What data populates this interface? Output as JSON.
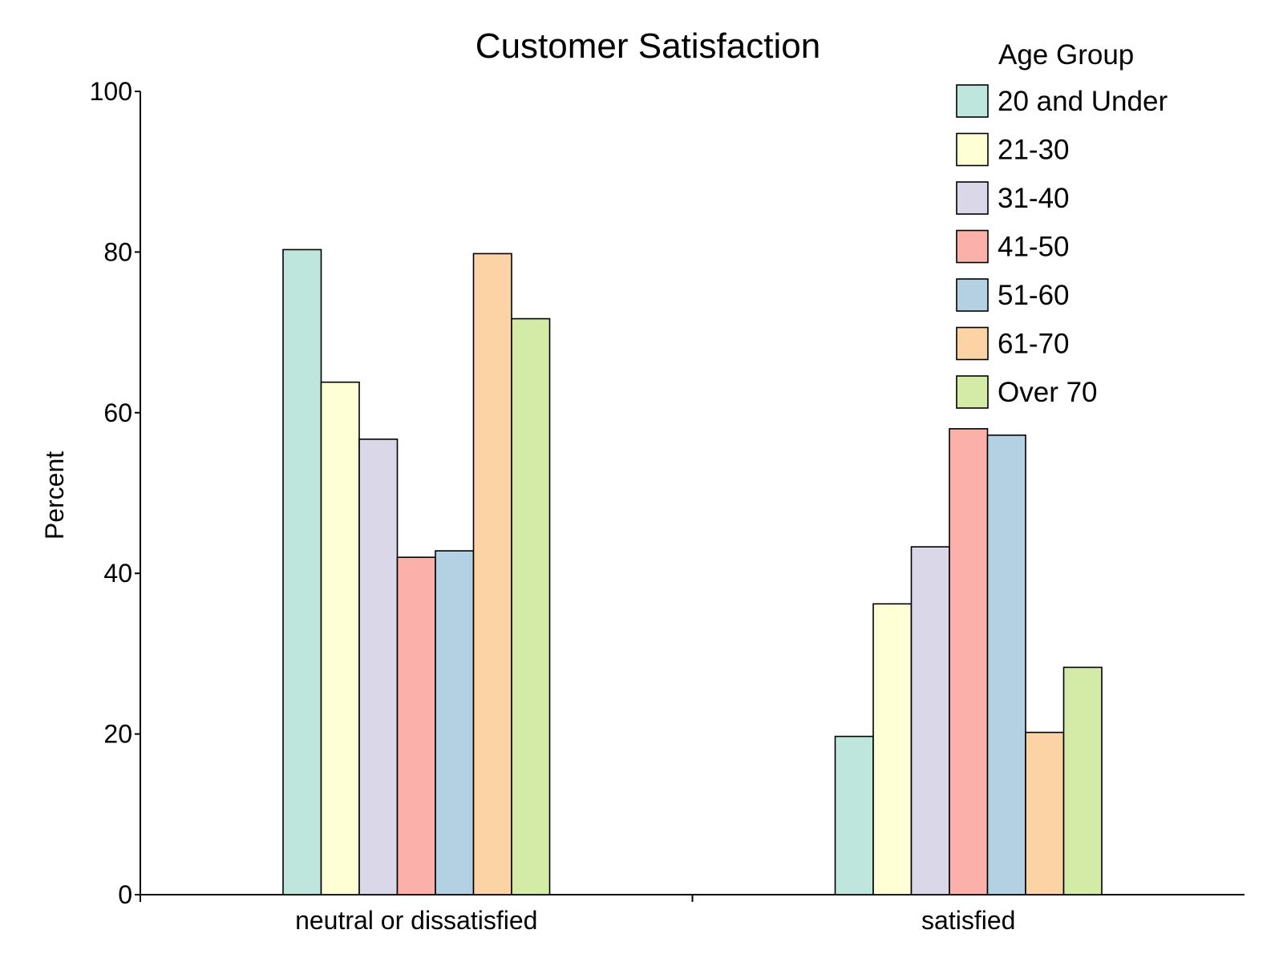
{
  "chart_data": {
    "type": "bar",
    "title": "Customer Satisfaction",
    "xlabel": "",
    "ylabel": "Percent",
    "categories": [
      "neutral or dissatisfied",
      "satisfied"
    ],
    "ylim": [
      0,
      100
    ],
    "yticks": [
      0,
      20,
      40,
      60,
      80,
      100
    ],
    "grid": false,
    "legend": {
      "title": "Age Group",
      "placement": "top-right"
    },
    "series": [
      {
        "name": "20 and Under",
        "color": "#bfe6dd",
        "values": [
          80.3,
          19.7
        ]
      },
      {
        "name": "21-30",
        "color": "#ffffd5",
        "values": [
          63.8,
          36.2
        ]
      },
      {
        "name": "31-40",
        "color": "#dad8e8",
        "values": [
          56.7,
          43.3
        ]
      },
      {
        "name": "41-50",
        "color": "#fbb1aa",
        "values": [
          42.0,
          58.0
        ]
      },
      {
        "name": "51-60",
        "color": "#b4d0e3",
        "values": [
          42.8,
          57.2
        ]
      },
      {
        "name": "61-70",
        "color": "#fcd3a4",
        "values": [
          79.8,
          20.2
        ]
      },
      {
        "name": "Over 70",
        "color": "#d3eba7",
        "values": [
          71.7,
          28.3
        ]
      }
    ]
  }
}
